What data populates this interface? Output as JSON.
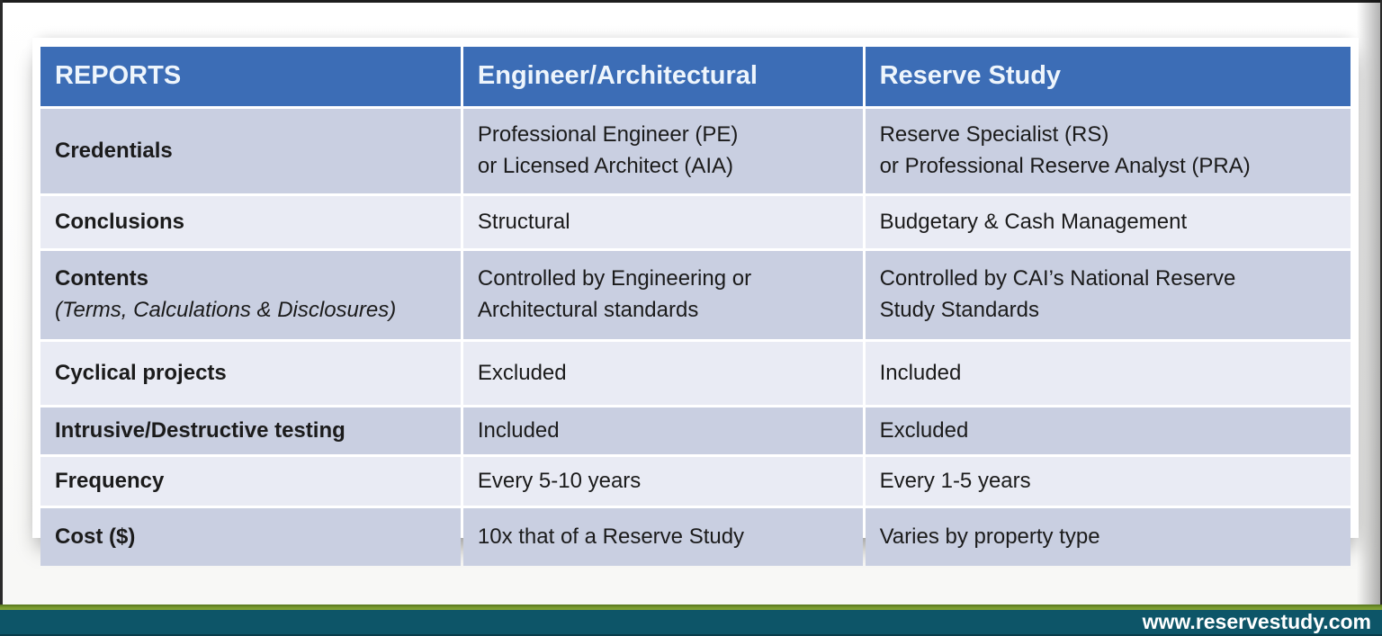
{
  "footer": {
    "url": "www.reservestudy.com"
  },
  "colors": {
    "header_bg": "#3c6db6",
    "header_text": "#eef5fc",
    "row_dark": "#c9cfe1",
    "row_light": "#e9ebf4",
    "footer_teal": "#0d5568",
    "footer_green": "#78992e"
  },
  "table": {
    "headers": [
      "REPORTS",
      "Engineer/Architectural",
      "Reserve Study"
    ],
    "rows": [
      {
        "label": "Credentials",
        "note": "",
        "eng": "Professional Engineer (PE)\nor Licensed Architect (AIA)",
        "res": "Reserve Specialist (RS)\nor Professional Reserve Analyst (PRA)"
      },
      {
        "label": "Conclusions",
        "note": "",
        "eng": "Structural",
        "res": "Budgetary & Cash Management"
      },
      {
        "label": "Contents",
        "note": "(Terms, Calculations & Disclosures)",
        "eng": "Controlled by Engineering or\nArchitectural standards",
        "res": "Controlled by CAI’s National Reserve\nStudy Standards"
      },
      {
        "label": "Cyclical projects",
        "note": "",
        "eng": "Excluded",
        "res": "Included"
      },
      {
        "label": "Intrusive/Destructive testing",
        "note": "",
        "eng": "Included",
        "res": "Excluded"
      },
      {
        "label": "Frequency",
        "note": "",
        "eng": "Every 5-10 years",
        "res": "Every 1-5 years"
      },
      {
        "label": "Cost ($)",
        "note": "",
        "eng": "10x that of a Reserve Study",
        "res": "Varies by property type"
      }
    ]
  }
}
